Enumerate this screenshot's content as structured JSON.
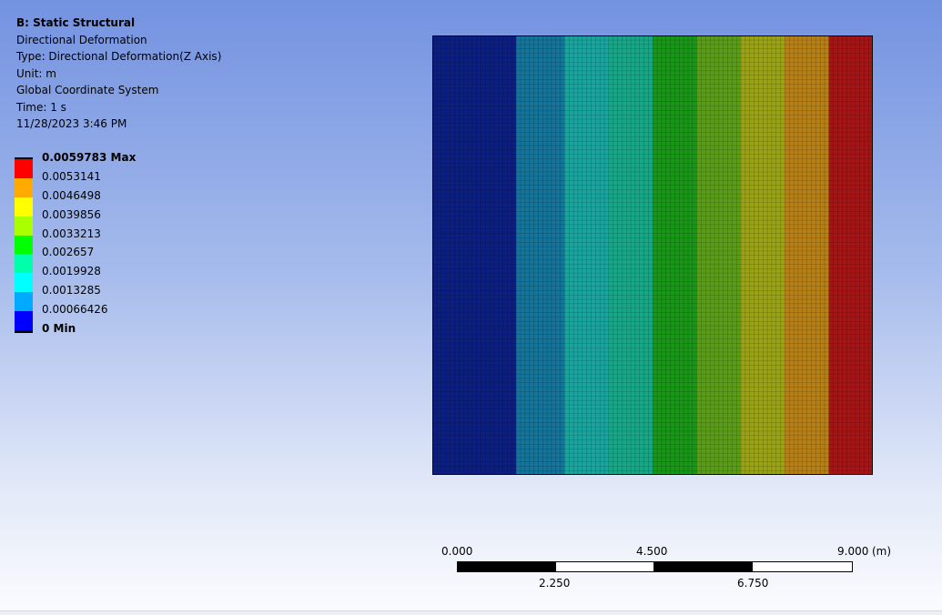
{
  "info": {
    "title": "B: Static Structural",
    "result_name": "Directional Deformation",
    "type": "Type: Directional Deformation(Z Axis)",
    "unit": "Unit: m",
    "coordinate_system": "Global Coordinate System",
    "time": "Time: 1 s",
    "timestamp": "11/28/2023 3:46 PM"
  },
  "legend": {
    "max_label": "0.0059783 Max",
    "levels": [
      "0.0053141",
      "0.0046498",
      "0.0039856",
      "0.0033213",
      "0.002657",
      "0.0019928",
      "0.0013285",
      "0.00066426"
    ],
    "min_label": "0 Min",
    "colors": [
      "#ff0000",
      "#ffaa00",
      "#ffff00",
      "#aaff00",
      "#00ff00",
      "#00ffaa",
      "#00ffff",
      "#00aaff",
      "#0000ff"
    ]
  },
  "contour": {
    "band_colors": [
      "#0b1f80",
      "#14749a",
      "#19a49e",
      "#17a787",
      "#199618",
      "#5a9c19",
      "#9aa215",
      "#b68017",
      "#a61515"
    ],
    "band_fractions": [
      0.19,
      0.11,
      0.1,
      0.1,
      0.1,
      0.1,
      0.1,
      0.1,
      0.1
    ],
    "mesh_divisions": 100
  },
  "scale_bar": {
    "top_labels": [
      "0.000",
      "4.500",
      "9.000"
    ],
    "unit": "(m)",
    "bottom_labels": [
      "2.250",
      "6.750"
    ]
  }
}
